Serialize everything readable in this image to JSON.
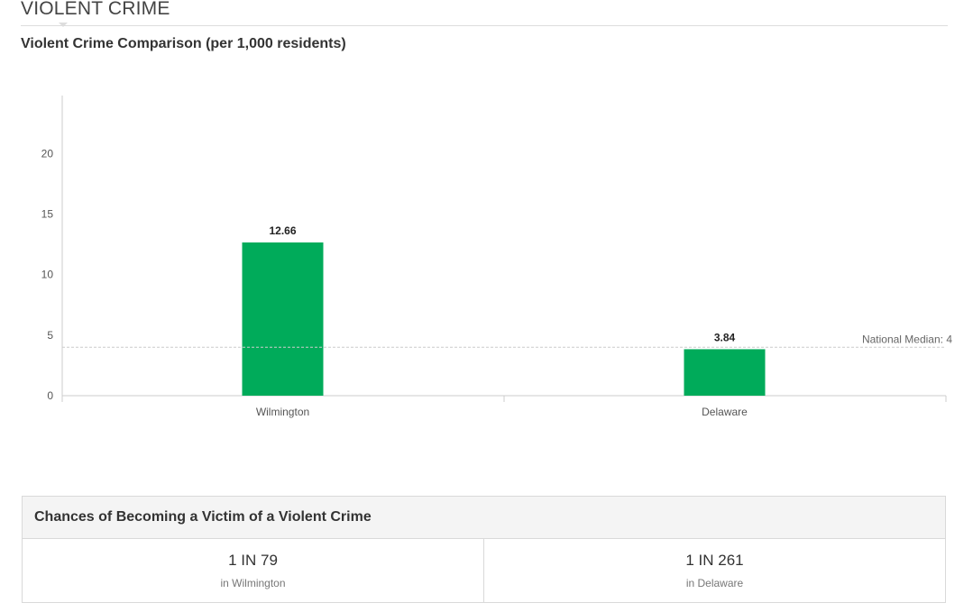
{
  "section": {
    "title": "VIOLENT CRIME"
  },
  "chart_data": {
    "type": "bar",
    "title": "Violent Crime Comparison (per 1,000 residents)",
    "xlabel": "",
    "ylabel": "",
    "categories": [
      "Wilmington",
      "Delaware"
    ],
    "values": [
      12.66,
      3.84
    ],
    "value_labels": [
      "12.66",
      "3.84"
    ],
    "yticks": [
      0,
      5,
      10,
      15,
      20
    ],
    "ylim": [
      0,
      24.8
    ],
    "grid": false,
    "legend": "none",
    "bar_color": "#00ab5a",
    "reference_line": {
      "label": "National Median: 4",
      "value": 4,
      "color": "#cccccc"
    }
  },
  "chances": {
    "title": "Chances of Becoming a Victim of a Violent Crime",
    "items": [
      {
        "value": "1 IN 79",
        "place": "in Wilmington"
      },
      {
        "value": "1 IN 261",
        "place": "in Delaware"
      }
    ]
  }
}
